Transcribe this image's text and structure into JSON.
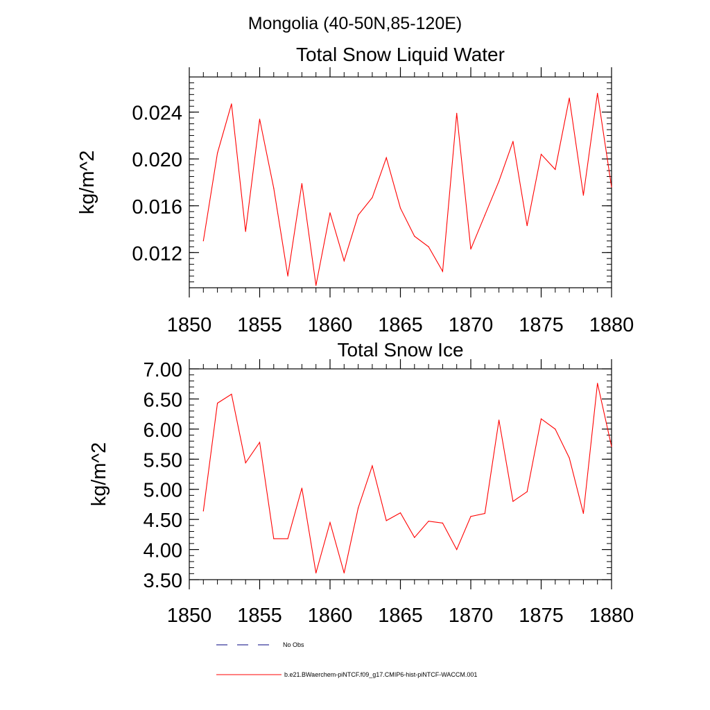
{
  "main_title": "Mongolia (40-50N,85-120E)",
  "chart_data": [
    {
      "type": "line",
      "title": "Total Snow Liquid Water",
      "xlabel": "",
      "ylabel": "kg/m^2",
      "xlim": [
        1850,
        1880
      ],
      "ylim": [
        0.009,
        0.027
      ],
      "x_ticks": [
        1850,
        1855,
        1860,
        1865,
        1870,
        1875,
        1880
      ],
      "x_tick_labels": [
        "1850",
        "1855",
        "1860",
        "1865",
        "1870",
        "1875",
        "1880"
      ],
      "y_ticks": [
        0.012,
        0.016,
        0.02,
        0.024
      ],
      "y_tick_labels": [
        "0.012",
        "0.016",
        "0.020",
        "0.024"
      ],
      "series": [
        {
          "name": "b.e21.BWaerchem-piNTCF.f09_g17.CMIP6-hist-piNTCF-WACCM.001",
          "color": "#ff0000",
          "x": [
            1851,
            1852,
            1853,
            1854,
            1855,
            1856,
            1857,
            1858,
            1859,
            1860,
            1861,
            1862,
            1863,
            1864,
            1865,
            1866,
            1867,
            1868,
            1869,
            1870,
            1871,
            1872,
            1873,
            1874,
            1875,
            1876,
            1877,
            1878,
            1879,
            1880
          ],
          "y": [
            0.013,
            0.0205,
            0.0247,
            0.0138,
            0.0234,
            0.0175,
            0.01,
            0.0179,
            0.0092,
            0.0154,
            0.0113,
            0.0152,
            0.0167,
            0.0201,
            0.0158,
            0.0134,
            0.0125,
            0.0104,
            0.0239,
            0.0123,
            0.0152,
            0.0181,
            0.0215,
            0.0143,
            0.0204,
            0.0191,
            0.0252,
            0.0169,
            0.0256,
            0.0176
          ]
        }
      ]
    },
    {
      "type": "line",
      "title": "Total Snow Ice",
      "xlabel": "",
      "ylabel": "kg/m^2",
      "xlim": [
        1850,
        1880
      ],
      "ylim": [
        3.5,
        7.0
      ],
      "x_ticks": [
        1850,
        1855,
        1860,
        1865,
        1870,
        1875,
        1880
      ],
      "x_tick_labels": [
        "1850",
        "1855",
        "1860",
        "1865",
        "1870",
        "1875",
        "1880"
      ],
      "y_ticks": [
        3.5,
        4.0,
        4.5,
        5.0,
        5.5,
        6.0,
        6.5,
        7.0
      ],
      "y_tick_labels": [
        "3.50",
        "4.00",
        "4.50",
        "5.00",
        "5.50",
        "6.00",
        "6.50",
        "7.00"
      ],
      "series": [
        {
          "name": "b.e21.BWaerchem-piNTCF.f09_g17.CMIP6-hist-piNTCF-WACCM.001",
          "color": "#ff0000",
          "x": [
            1851,
            1852,
            1853,
            1854,
            1855,
            1856,
            1857,
            1858,
            1859,
            1860,
            1861,
            1862,
            1863,
            1864,
            1865,
            1866,
            1867,
            1868,
            1869,
            1870,
            1871,
            1872,
            1873,
            1874,
            1875,
            1876,
            1877,
            1878,
            1879,
            1880
          ],
          "y": [
            4.64,
            6.43,
            6.58,
            5.44,
            5.78,
            4.18,
            4.18,
            5.02,
            3.61,
            4.45,
            3.61,
            4.69,
            5.39,
            4.48,
            4.61,
            4.2,
            4.47,
            4.44,
            4.0,
            4.55,
            4.6,
            6.15,
            4.8,
            4.96,
            6.17,
            6.0,
            5.52,
            4.6,
            6.76,
            5.71
          ]
        }
      ]
    }
  ],
  "legend": {
    "items": [
      {
        "label": "No Obs",
        "color": "#000080",
        "style": "dashed"
      },
      {
        "label": "b.e21.BWaerchem-piNTCF.f09_g17.CMIP6-hist-piNTCF-WACCM.001",
        "color": "#ff0000",
        "style": "solid"
      }
    ]
  }
}
